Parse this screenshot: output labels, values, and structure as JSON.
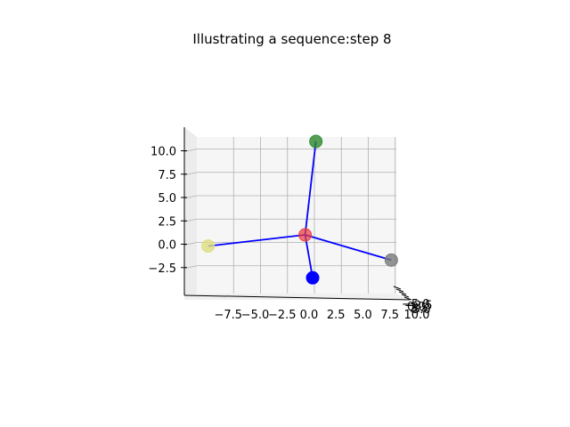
{
  "chart_data": {
    "type": "scatter",
    "projection": "3d",
    "title": "Illustrating a sequence:step 8",
    "x_ticks": [
      "−7.5",
      "−5.0",
      "−2.5",
      "0.0",
      "2.5",
      "5.0",
      "7.5",
      "10.0"
    ],
    "y_ticks": [
      "−5.0",
      "−2.5",
      "0.0",
      "2.5",
      "5.0"
    ],
    "z_ticks": [
      "−2.5",
      "0.0",
      "2.5",
      "5.0",
      "7.5",
      "10.0"
    ],
    "xlim": [
      -10,
      10
    ],
    "zlim": [
      -3.5,
      11.5
    ],
    "grid": true,
    "points": [
      {
        "name": "center",
        "x": -0.2,
        "z": 1.0,
        "color": "#ee3b3b",
        "alpha": 0.7
      },
      {
        "name": "top",
        "x": 0.8,
        "z": 11.0,
        "color": "#2e8b2e",
        "alpha": 0.8
      },
      {
        "name": "left",
        "x": -9.2,
        "z": -0.2,
        "color": "#dede80",
        "alpha": 0.8
      },
      {
        "name": "right",
        "x": 7.8,
        "z": -1.7,
        "color": "#7a7a7a",
        "alpha": 0.8
      },
      {
        "name": "bottom",
        "x": 0.5,
        "z": -3.6,
        "color": "#0000ff",
        "alpha": 1.0
      }
    ],
    "edges": [
      [
        "center",
        "top"
      ],
      [
        "center",
        "left"
      ],
      [
        "center",
        "right"
      ],
      [
        "center",
        "bottom"
      ]
    ],
    "edge_color": "#0000ff"
  }
}
